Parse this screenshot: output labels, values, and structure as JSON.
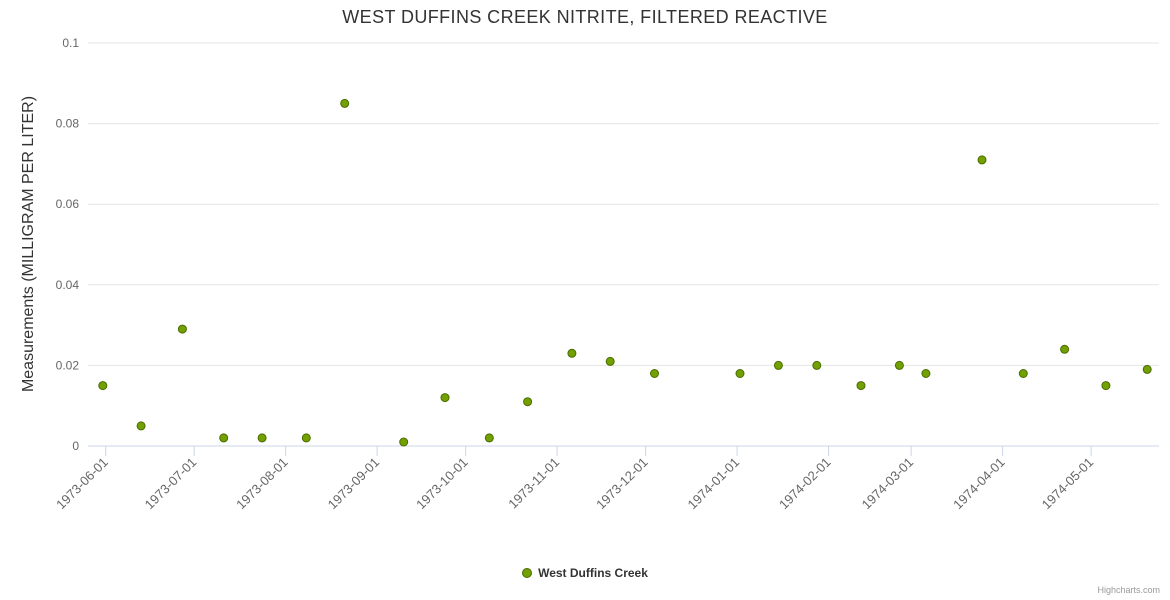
{
  "title": "WEST DUFFINS CREEK NITRITE, FILTERED REACTIVE",
  "credits_label": "Highcharts.com",
  "legend": {
    "label": "West Duffins Creek"
  },
  "chart_data": {
    "type": "scatter",
    "title": "WEST DUFFINS CREEK NITRITE, FILTERED REACTIVE",
    "xlabel": "",
    "ylabel": "Measurements (MILLIGRAM PER LITER)",
    "ylim": [
      0,
      0.1
    ],
    "yticks": [
      {
        "value": 0,
        "label": "0"
      },
      {
        "value": 0.02,
        "label": "0.02"
      },
      {
        "value": 0.04,
        "label": "0.04"
      },
      {
        "value": 0.06,
        "label": "0.06"
      },
      {
        "value": 0.08,
        "label": "0.08"
      },
      {
        "value": 0.1,
        "label": "0.1"
      }
    ],
    "x_min": "1973-05-26",
    "x_max": "1974-05-24",
    "xticks": [
      "1973-06-01",
      "1973-07-01",
      "1973-08-01",
      "1973-09-01",
      "1973-10-01",
      "1973-11-01",
      "1973-12-01",
      "1974-01-01",
      "1974-02-01",
      "1974-03-01",
      "1974-04-01",
      "1974-05-01"
    ],
    "grid": "horizontal",
    "legend_position": "bottom-center",
    "colors": {
      "grid": "#e6e6e6",
      "axis_line": "#ccd6eb",
      "tick_label": "#666666",
      "title": "#333333"
    },
    "series": [
      {
        "name": "West Duffins Creek",
        "color": "#72a000",
        "border_color": "#4a6b00",
        "points": [
          {
            "date": "1973-05-31",
            "value": 0.015
          },
          {
            "date": "1973-06-13",
            "value": 0.005
          },
          {
            "date": "1973-06-27",
            "value": 0.029
          },
          {
            "date": "1973-07-11",
            "value": 0.002
          },
          {
            "date": "1973-07-24",
            "value": 0.002
          },
          {
            "date": "1973-08-08",
            "value": 0.002
          },
          {
            "date": "1973-08-21",
            "value": 0.085
          },
          {
            "date": "1973-09-10",
            "value": 0.001
          },
          {
            "date": "1973-09-24",
            "value": 0.012
          },
          {
            "date": "1973-10-09",
            "value": 0.002
          },
          {
            "date": "1973-10-22",
            "value": 0.011
          },
          {
            "date": "1973-11-06",
            "value": 0.023
          },
          {
            "date": "1973-11-19",
            "value": 0.021
          },
          {
            "date": "1973-12-04",
            "value": 0.018
          },
          {
            "date": "1974-01-02",
            "value": 0.018
          },
          {
            "date": "1974-01-15",
            "value": 0.02
          },
          {
            "date": "1974-01-28",
            "value": 0.02
          },
          {
            "date": "1974-02-12",
            "value": 0.015
          },
          {
            "date": "1974-02-25",
            "value": 0.02
          },
          {
            "date": "1974-03-06",
            "value": 0.018
          },
          {
            "date": "1974-03-25",
            "value": 0.071
          },
          {
            "date": "1974-04-08",
            "value": 0.018
          },
          {
            "date": "1974-04-22",
            "value": 0.024
          },
          {
            "date": "1974-05-06",
            "value": 0.015
          },
          {
            "date": "1974-05-20",
            "value": 0.019
          }
        ]
      }
    ]
  }
}
